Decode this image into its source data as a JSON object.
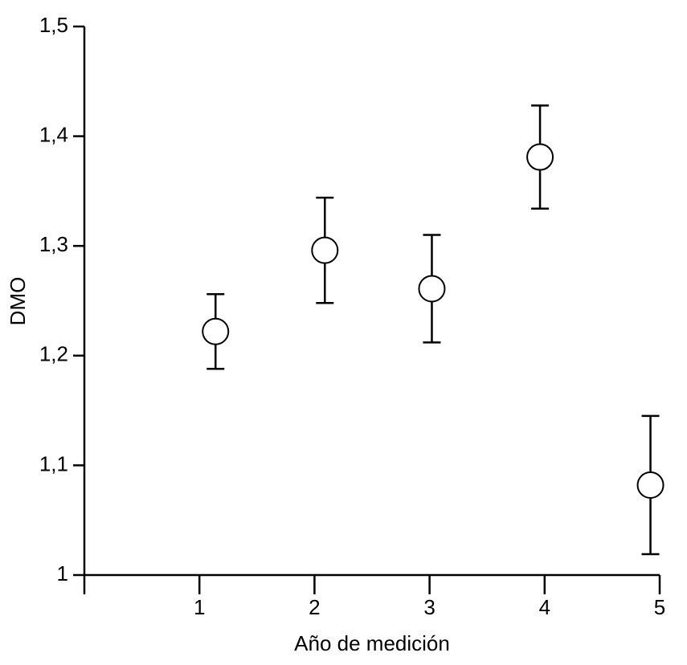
{
  "chart_data": {
    "type": "scatter",
    "xlabel": "Año de medición",
    "ylabel": "DMO",
    "x": [
      1.14,
      2.09,
      3.02,
      3.96,
      4.92
    ],
    "values": [
      1.222,
      1.296,
      1.261,
      1.381,
      1.082
    ],
    "errors": [
      0.034,
      0.048,
      0.049,
      0.047,
      0.063
    ],
    "color": "#000000",
    "xlim": [
      0,
      5
    ],
    "xticks": [
      1,
      2,
      3,
      4,
      5
    ],
    "ylim": [
      1,
      1.5
    ],
    "yticks": [
      1,
      {
        "value": 1.1,
        "label": "1,1"
      },
      {
        "value": 1.2,
        "label": "1,2"
      },
      {
        "value": 1.3,
        "label": "1,3"
      },
      {
        "value": 1.4,
        "label": "1,4"
      },
      {
        "value": 1.5,
        "label": "1,5"
      }
    ],
    "grid": false
  }
}
